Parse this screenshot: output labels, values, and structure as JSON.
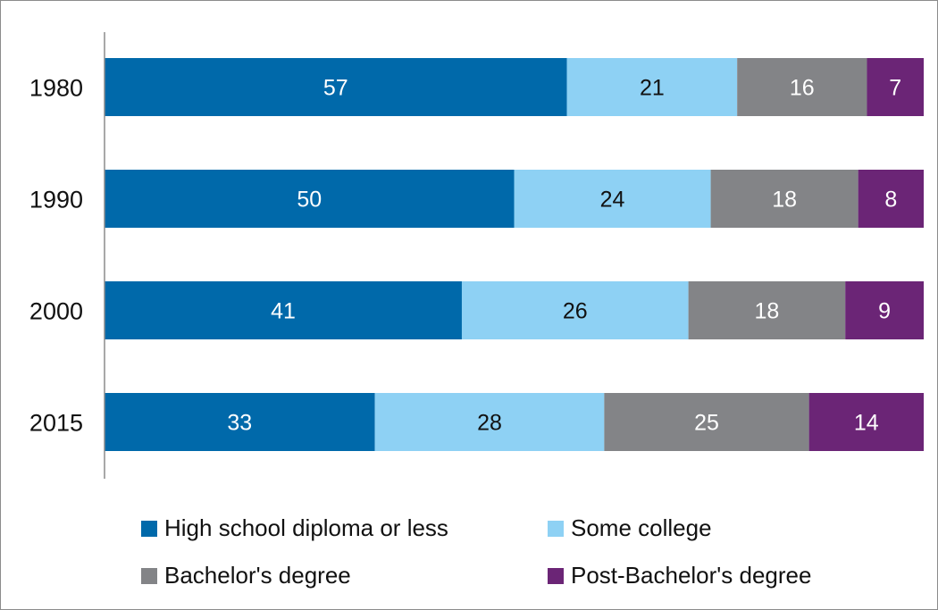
{
  "chart_data": {
    "type": "bar",
    "orientation": "horizontal",
    "stacked": true,
    "categories": [
      "1980",
      "1990",
      "2000",
      "2015"
    ],
    "series": [
      {
        "name": "High school diploma or less",
        "values": [
          57,
          50,
          41,
          33
        ],
        "color": "#0069aa",
        "label_color": "#ffffff"
      },
      {
        "name": "Some college",
        "values": [
          21,
          24,
          26,
          28
        ],
        "color": "#8ed1f4",
        "label_color": "#111111"
      },
      {
        "name": "Bachelor's degree",
        "values": [
          16,
          18,
          18,
          25
        ],
        "color": "#838487",
        "label_color": "#ffffff"
      },
      {
        "name": "Post-Bachelor's degree",
        "values": [
          7,
          8,
          9,
          14
        ],
        "color": "#6b2576",
        "label_color": "#ffffff"
      }
    ],
    "title": "",
    "xlabel": "",
    "ylabel": "",
    "grid": false,
    "legend_position": "bottom"
  }
}
